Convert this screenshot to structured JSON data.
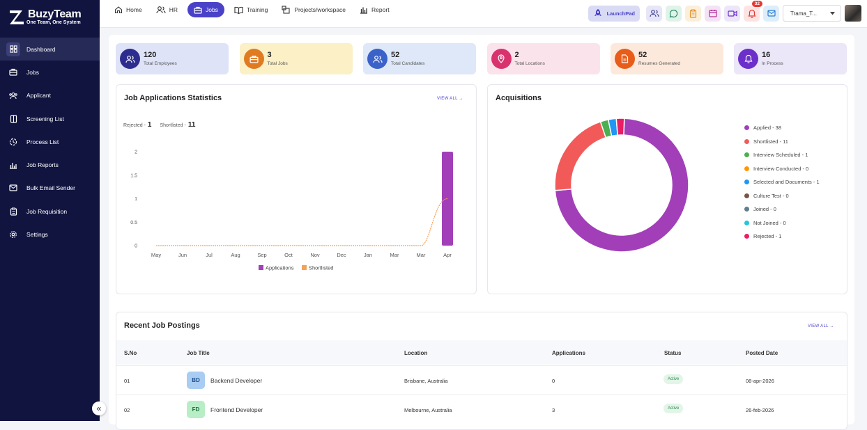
{
  "brand": {
    "name": "BuzyTeam",
    "tagline": "One Team, One System"
  },
  "sidebar": {
    "items": [
      {
        "label": "Dashboard",
        "icon": "dashboard-icon",
        "active": true
      },
      {
        "label": "Jobs",
        "icon": "briefcase-icon"
      },
      {
        "label": "Applicant",
        "icon": "users-icon"
      },
      {
        "label": "Screening List",
        "icon": "book-icon"
      },
      {
        "label": "Process List",
        "icon": "refresh-icon"
      },
      {
        "label": "Job Reports",
        "icon": "bar-chart-icon"
      },
      {
        "label": "Bulk Email Sender",
        "icon": "mail-icon"
      },
      {
        "label": "Job Requisition",
        "icon": "clipboard-icon"
      },
      {
        "label": "Settings",
        "icon": "gear-icon"
      }
    ],
    "collapse_label": "«"
  },
  "topnav": {
    "items": [
      {
        "label": "Home",
        "icon": "home-icon"
      },
      {
        "label": "HR",
        "icon": "users-icon"
      },
      {
        "label": "Jobs",
        "icon": "briefcase-icon",
        "active": true
      },
      {
        "label": "Training",
        "icon": "book-open-icon"
      },
      {
        "label": "Projects/workspace",
        "icon": "workspace-icon"
      },
      {
        "label": "Report",
        "icon": "report-icon"
      }
    ],
    "launchpad_label": "LaunchPad",
    "notification_count": "32",
    "user_name": "Trama_T..."
  },
  "stats": [
    {
      "value": "120",
      "label": "Total Employees",
      "bg": "#dfe3f8",
      "icon_bg": "#2d2d8f",
      "icon": "users-icon"
    },
    {
      "value": "3",
      "label": "Total Jobs",
      "bg": "#fbf0c6",
      "icon_bg": "#e07b22",
      "icon": "briefcase-icon"
    },
    {
      "value": "52",
      "label": "Total Candidates",
      "bg": "#dfe8f8",
      "icon_bg": "#3a62c9",
      "icon": "users-icon"
    },
    {
      "value": "2",
      "label": "Total Locations",
      "bg": "#fbe3ec",
      "icon_bg": "#d8336c",
      "icon": "location-icon"
    },
    {
      "value": "52",
      "label": "Resumes Generated",
      "bg": "#fde9dc",
      "icon_bg": "#e85d1a",
      "icon": "document-icon"
    },
    {
      "value": "16",
      "label": "In Process",
      "bg": "#ebe6f8",
      "icon_bg": "#6c2fc9",
      "icon": "bell-icon"
    }
  ],
  "job_stats": {
    "title": "Job Applications Statistics",
    "view_all": "VIEW ALL →",
    "rejected_label": "Rejected -",
    "rejected_value": "1",
    "shortlisted_label": "Shortlisted -",
    "shortlisted_value": "11"
  },
  "acquisitions": {
    "title": "Acquisitions",
    "items": [
      {
        "label": "Applied - 38",
        "value": 38,
        "color": "#a23fb8"
      },
      {
        "label": "Shortlisted - 11",
        "value": 11,
        "color": "#f25a5a"
      },
      {
        "label": "Interview Scheduled - 1",
        "value": 1,
        "color": "#4caf50"
      },
      {
        "label": "Interview Conducted - 0",
        "value": 0,
        "color": "#ff9800"
      },
      {
        "label": "Selected and Documents - 1",
        "value": 1,
        "color": "#2196f3"
      },
      {
        "label": "Culture Test - 0",
        "value": 0,
        "color": "#795548"
      },
      {
        "label": "Joined - 0",
        "value": 0,
        "color": "#607d8b"
      },
      {
        "label": "Not Joined - 0",
        "value": 0,
        "color": "#26c6da"
      },
      {
        "label": "Rejected - 1",
        "value": 1,
        "color": "#e91e63"
      }
    ]
  },
  "chart_data": {
    "type": "bar",
    "categories": [
      "May",
      "Jun",
      "Jul",
      "Aug",
      "Sep",
      "Oct",
      "Nov",
      "Dec",
      "Jan",
      "Mar",
      "Mar",
      "Apr"
    ],
    "series": [
      {
        "name": "Applications",
        "type": "bar",
        "color": "#a23fb8",
        "values": [
          0,
          0,
          0,
          0,
          0,
          0,
          0,
          0,
          0,
          0,
          0,
          2
        ]
      },
      {
        "name": "Shortlisted",
        "type": "line",
        "color": "#f4a259",
        "values": [
          0,
          0,
          0,
          0,
          0,
          0,
          0,
          0,
          0,
          0,
          0,
          1
        ]
      }
    ],
    "yticks": [
      "0",
      "0.5",
      "1",
      "1.5",
      "2"
    ],
    "ylim": [
      0,
      2
    ],
    "legend": "bottom"
  },
  "recent": {
    "title": "Recent Job Postings",
    "view_all": "VIEW ALL →",
    "headers": [
      "S.No",
      "Job Title",
      "Location",
      "Applications",
      "Status",
      "Posted Date"
    ],
    "rows": [
      {
        "sno": "01",
        "initials": "BD",
        "title": "Backend Developer",
        "location": "Brisbane, Australia",
        "applications": "0",
        "status": "Active",
        "date": "08-apr-2026",
        "ini_bg": "#a9ccf3",
        "ini_fg": "#1f4e8a"
      },
      {
        "sno": "02",
        "initials": "FD",
        "title": "Frontend Developer",
        "location": "Melbourne, Australia",
        "applications": "3",
        "status": "Active",
        "date": "26-feb-2026",
        "ini_bg": "#b8eec6",
        "ini_fg": "#1f6b3a"
      }
    ]
  }
}
